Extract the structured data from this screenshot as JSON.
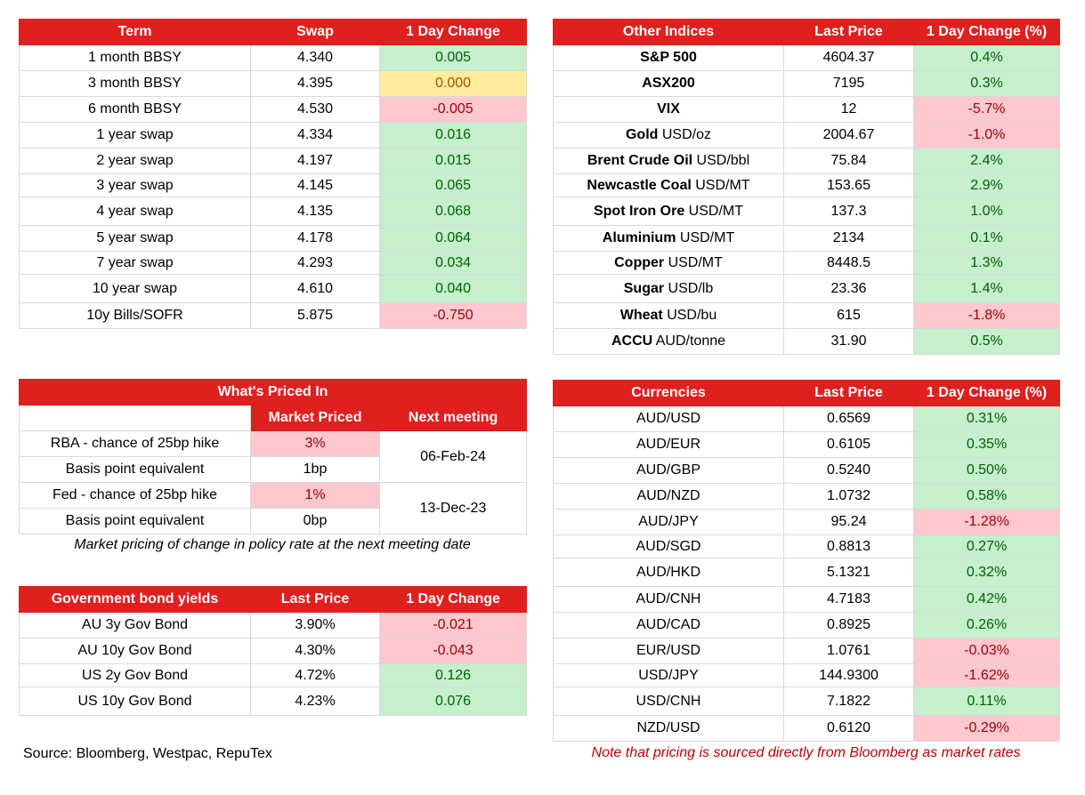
{
  "swaps": {
    "headers": [
      "Term",
      "Swap",
      "1 Day Change"
    ],
    "rows": [
      {
        "term": "1 month BBSY",
        "swap": "4.340",
        "change": "0.005",
        "tone": "pos"
      },
      {
        "term": "3 month BBSY",
        "swap": "4.395",
        "change": "0.000",
        "tone": "flat"
      },
      {
        "term": "6 month BBSY",
        "swap": "4.530",
        "change": "-0.005",
        "tone": "neg"
      },
      {
        "term": "1 year swap",
        "swap": "4.334",
        "change": "0.016",
        "tone": "pos"
      },
      {
        "term": "2 year swap",
        "swap": "4.197",
        "change": "0.015",
        "tone": "pos"
      },
      {
        "term": "3 year swap",
        "swap": "4.145",
        "change": "0.065",
        "tone": "pos"
      },
      {
        "term": "4 year swap",
        "swap": "4.135",
        "change": "0.068",
        "tone": "pos"
      },
      {
        "term": "5 year swap",
        "swap": "4.178",
        "change": "0.064",
        "tone": "pos"
      },
      {
        "term": "7 year swap",
        "swap": "4.293",
        "change": "0.034",
        "tone": "pos"
      },
      {
        "term": "10 year swap",
        "swap": "4.610",
        "change": "0.040",
        "tone": "pos"
      },
      {
        "term": "10y Bills/SOFR",
        "swap": "5.875",
        "change": "-0.750",
        "tone": "neg"
      }
    ]
  },
  "indices": {
    "headers": [
      "Other Indices",
      "Last Price",
      "1 Day Change (%)"
    ],
    "rows": [
      {
        "name": "S&P 500",
        "unit": "",
        "price": "4604.37",
        "change": "0.4%",
        "tone": "pos"
      },
      {
        "name": "ASX200",
        "unit": "",
        "price": "7195",
        "change": "0.3%",
        "tone": "pos"
      },
      {
        "name": "VIX",
        "unit": "",
        "price": "12",
        "change": "-5.7%",
        "tone": "neg"
      },
      {
        "name": "Gold",
        "unit": "USD/oz",
        "price": "2004.67",
        "change": "-1.0%",
        "tone": "neg"
      },
      {
        "name": "Brent Crude Oil",
        "unit": "USD/bbl",
        "price": "75.84",
        "change": "2.4%",
        "tone": "pos"
      },
      {
        "name": "Newcastle Coal",
        "unit": "USD/MT",
        "price": "153.65",
        "change": "2.9%",
        "tone": "pos"
      },
      {
        "name": "Spot Iron Ore",
        "unit": "USD/MT",
        "price": "137.3",
        "change": "1.0%",
        "tone": "pos"
      },
      {
        "name": "Aluminium",
        "unit": "USD/MT",
        "price": "2134",
        "change": "0.1%",
        "tone": "pos"
      },
      {
        "name": "Copper",
        "unit": "USD/MT",
        "price": "8448.5",
        "change": "1.3%",
        "tone": "pos"
      },
      {
        "name": "Sugar",
        "unit": "USD/lb",
        "price": "23.36",
        "change": "1.4%",
        "tone": "pos"
      },
      {
        "name": "Wheat",
        "unit": "USD/bu",
        "price": "615",
        "change": "-1.8%",
        "tone": "neg"
      },
      {
        "name": "ACCU",
        "unit": "AUD/tonne",
        "price": "31.90",
        "change": "0.5%",
        "tone": "pos"
      }
    ]
  },
  "priced": {
    "title": "What's Priced In",
    "sub_headers": [
      "Market Priced",
      "Next meeting"
    ],
    "rows": [
      {
        "label": "RBA - chance of 25bp hike",
        "value": "3%"
      },
      {
        "label": "Basis point equivalent",
        "value": "1bp"
      },
      {
        "label": "Fed - chance of 25bp hike",
        "value": "1%"
      },
      {
        "label": "Basis point equivalent",
        "value": "0bp"
      }
    ],
    "meetings": [
      "06-Feb-24",
      "13-Dec-23"
    ],
    "caption": "Market pricing of change in policy rate at the next meeting date"
  },
  "bonds": {
    "headers": [
      "Government bond yields",
      "Last Price",
      "1 Day Change"
    ],
    "rows": [
      {
        "name": "AU 3y Gov Bond",
        "price": "3.90%",
        "change": "-0.021",
        "tone": "neg"
      },
      {
        "name": "AU 10y Gov Bond",
        "price": "4.30%",
        "change": "-0.043",
        "tone": "neg"
      },
      {
        "name": "US 2y Gov Bond",
        "price": "4.72%",
        "change": "0.126",
        "tone": "pos"
      },
      {
        "name": "US 10y Gov Bond",
        "price": "4.23%",
        "change": "0.076",
        "tone": "pos"
      }
    ]
  },
  "currencies": {
    "headers": [
      "Currencies",
      "Last Price",
      "1 Day Change (%)"
    ],
    "rows": [
      {
        "pair": "AUD/USD",
        "price": "0.6569",
        "change": "0.31%",
        "tone": "pos"
      },
      {
        "pair": "AUD/EUR",
        "price": "0.6105",
        "change": "0.35%",
        "tone": "pos"
      },
      {
        "pair": "AUD/GBP",
        "price": "0.5240",
        "change": "0.50%",
        "tone": "pos"
      },
      {
        "pair": "AUD/NZD",
        "price": "1.0732",
        "change": "0.58%",
        "tone": "pos"
      },
      {
        "pair": "AUD/JPY",
        "price": "95.24",
        "change": "-1.28%",
        "tone": "neg"
      },
      {
        "pair": "AUD/SGD",
        "price": "0.8813",
        "change": "0.27%",
        "tone": "pos"
      },
      {
        "pair": "AUD/HKD",
        "price": "5.1321",
        "change": "0.32%",
        "tone": "pos"
      },
      {
        "pair": "AUD/CNH",
        "price": "4.7183",
        "change": "0.42%",
        "tone": "pos"
      },
      {
        "pair": "AUD/CAD",
        "price": "0.8925",
        "change": "0.26%",
        "tone": "pos"
      },
      {
        "pair": "EUR/USD",
        "price": "1.0761",
        "change": "-0.03%",
        "tone": "neg"
      },
      {
        "pair": "USD/JPY",
        "price": "144.9300",
        "change": "-1.62%",
        "tone": "neg"
      },
      {
        "pair": "USD/CNH",
        "price": "7.1822",
        "change": "0.11%",
        "tone": "pos"
      },
      {
        "pair": "NZD/USD",
        "price": "0.6120",
        "change": "-0.29%",
        "tone": "neg"
      }
    ]
  },
  "footer": {
    "source": "Source: Bloomberg, Westpac, RepuTex",
    "note": "Note that pricing is sourced directly from Bloomberg as market rates"
  }
}
